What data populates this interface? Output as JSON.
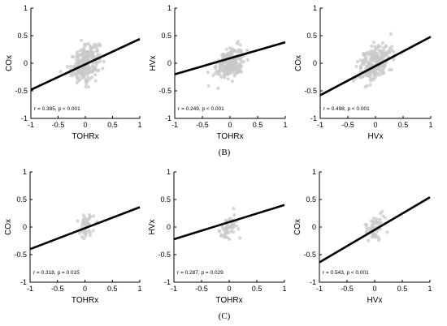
{
  "figure": {
    "row_labels": [
      "(B)",
      "(C)"
    ],
    "accent_color": "#000000",
    "point_color": "#c8c8c8"
  },
  "chart_data": [
    {
      "type": "scatter",
      "xlabel": "TOHRx",
      "ylabel": "COx",
      "xlim": [
        -1,
        1
      ],
      "ylim": [
        -1,
        1
      ],
      "xticks": [
        "-1",
        "-0.5",
        "0",
        "0.5",
        "1"
      ],
      "yticks": [
        "-1",
        "-0.5",
        "0",
        "0.5",
        "1"
      ],
      "annotation": "r = 0.385, p < 0.001",
      "fit_line": {
        "x": [
          -1,
          1
        ],
        "y": [
          -0.48,
          0.44
        ]
      },
      "n_points": 260,
      "spread": {
        "xs": 0.13,
        "ys": 0.15,
        "slope": 0.46
      }
    },
    {
      "type": "scatter",
      "xlabel": "TOHRx",
      "ylabel": "HVx",
      "xlim": [
        -1,
        1
      ],
      "ylim": [
        -1,
        1
      ],
      "xticks": [
        "-1",
        "-0.5",
        "0",
        "0.5",
        "1"
      ],
      "yticks": [
        "-1",
        "-0.5",
        "0",
        "0.5",
        "1"
      ],
      "annotation": "r = 0.249, p < 0.001",
      "fit_line": {
        "x": [
          -1,
          1
        ],
        "y": [
          -0.2,
          0.38
        ]
      },
      "n_points": 260,
      "spread": {
        "xs": 0.12,
        "ys": 0.13,
        "slope": 0.29
      }
    },
    {
      "type": "scatter",
      "xlabel": "HVx",
      "ylabel": "COx",
      "xlim": [
        -1,
        1
      ],
      "ylim": [
        -1,
        1
      ],
      "xticks": [
        "-1",
        "-0.5",
        "0",
        "0.5",
        "1"
      ],
      "yticks": [
        "-1",
        "-0.5",
        "0",
        "0.5",
        "1"
      ],
      "annotation": "r = 0.498, p < 0.001",
      "fit_line": {
        "x": [
          -1,
          1
        ],
        "y": [
          -0.58,
          0.48
        ]
      },
      "n_points": 260,
      "spread": {
        "xs": 0.15,
        "ys": 0.15,
        "slope": 0.53
      }
    },
    {
      "type": "scatter",
      "xlabel": "TOHRx",
      "ylabel": "COx",
      "xlim": [
        -1,
        1
      ],
      "ylim": [
        -1,
        1
      ],
      "xticks": [
        "-1",
        "-0.5",
        "0",
        "0.5",
        "1"
      ],
      "yticks": [
        "-1",
        "-0.5",
        "0",
        "0.5",
        "1"
      ],
      "annotation": "r = 0.318, p = 0.015",
      "fit_line": {
        "x": [
          -1,
          1
        ],
        "y": [
          -0.4,
          0.36
        ]
      },
      "n_points": 55,
      "spread": {
        "xs": 0.08,
        "ys": 0.11,
        "slope": 0.38
      }
    },
    {
      "type": "scatter",
      "xlabel": "TOHRx",
      "ylabel": "HVx",
      "xlim": [
        -1,
        1
      ],
      "ylim": [
        -1,
        1
      ],
      "xticks": [
        "-1",
        "-0.5",
        "0",
        "0.5",
        "1"
      ],
      "yticks": [
        "-1",
        "-0.5",
        "0",
        "0.5",
        "1"
      ],
      "annotation": "r = 0.287, p = 0.029",
      "fit_line": {
        "x": [
          -1,
          1
        ],
        "y": [
          -0.22,
          0.4
        ]
      },
      "n_points": 55,
      "spread": {
        "xs": 0.08,
        "ys": 0.12,
        "slope": 0.31
      }
    },
    {
      "type": "scatter",
      "xlabel": "HVx",
      "ylabel": "COx",
      "xlim": [
        -1,
        1
      ],
      "ylim": [
        -1,
        1
      ],
      "xticks": [
        "-1",
        "-0.5",
        "0",
        "0.5",
        "1"
      ],
      "yticks": [
        "-1",
        "-0.5",
        "0",
        "0.5",
        "1"
      ],
      "annotation": "r = 0.543, p < 0.001",
      "fit_line": {
        "x": [
          -1,
          1
        ],
        "y": [
          -0.64,
          0.54
        ]
      },
      "n_points": 55,
      "spread": {
        "xs": 0.09,
        "ys": 0.12,
        "slope": 0.59
      }
    }
  ]
}
